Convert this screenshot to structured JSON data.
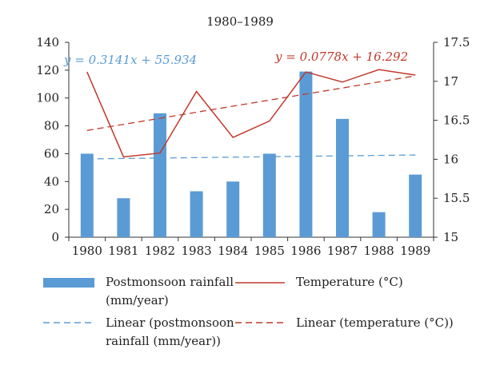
{
  "chart_data": {
    "type": "bar",
    "title": "1980–1989",
    "categories": [
      "1980",
      "1981",
      "1982",
      "1983",
      "1984",
      "1985",
      "1986",
      "1987",
      "1988",
      "1989"
    ],
    "series": [
      {
        "name": "Postmonsoon rainfall (mm/year)",
        "kind": "bar",
        "axis": "left",
        "values": [
          60,
          28,
          89,
          33,
          40,
          60,
          119,
          85,
          18,
          45
        ]
      },
      {
        "name": "Temperature (°C)",
        "kind": "line",
        "axis": "right",
        "values": [
          17.12,
          16.03,
          16.08,
          16.87,
          16.28,
          16.49,
          17.12,
          16.99,
          17.15,
          17.08
        ]
      },
      {
        "name": "Linear (postmonsoon rainfall (mm/year))",
        "kind": "trend",
        "axis": "left",
        "equation": "y = 0.3141x + 55.934",
        "slope": 0.3141,
        "intercept": 55.934
      },
      {
        "name": "Linear (temperature (°C))",
        "kind": "trend",
        "axis": "right",
        "equation": "y = 0.0778x + 16.292",
        "slope": 0.0778,
        "intercept": 16.292
      }
    ],
    "y_left": {
      "min": 0,
      "max": 140,
      "ticks": [
        "0",
        "20",
        "40",
        "60",
        "80",
        "100",
        "120",
        "140"
      ]
    },
    "y_right": {
      "min": 15,
      "max": 17.5,
      "ticks": [
        "15",
        "15.5",
        "16",
        "16.5",
        "17",
        "17.5"
      ]
    },
    "grid": false,
    "legend": "bottom",
    "colors": {
      "bar": "#5b9bd5",
      "temperature": "#c0392b",
      "rain_trend": "#5b9bd5",
      "temp_trend": "#c0392b"
    }
  }
}
